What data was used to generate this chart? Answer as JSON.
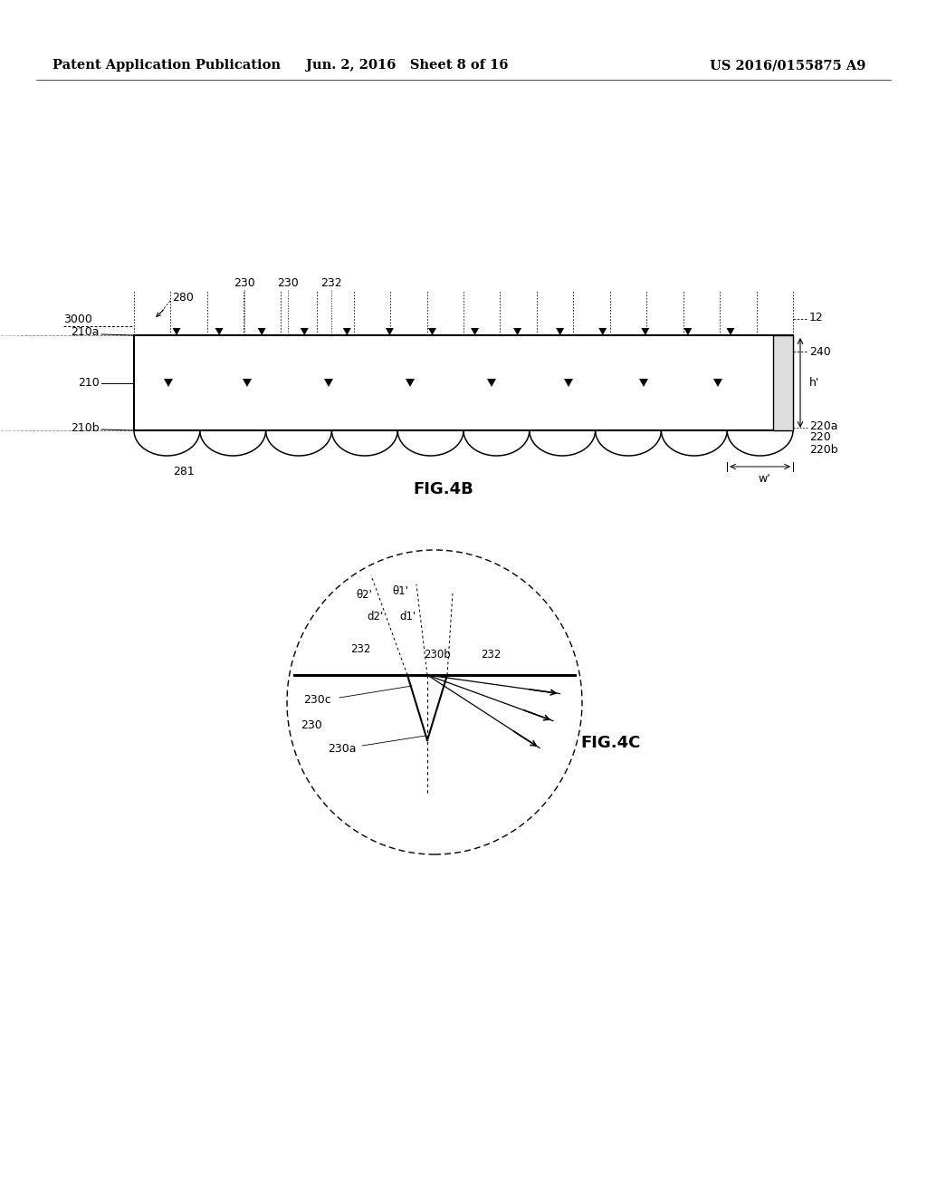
{
  "header_left": "Patent Application Publication",
  "header_mid": "Jun. 2, 2016   Sheet 8 of 16",
  "header_right": "US 2016/0155875 A9",
  "fig4b_label": "FIG.4B",
  "fig4c_label": "FIG.4C",
  "bg_color": "#ffffff",
  "line_color": "#000000",
  "gray_color": "#888888",
  "light_gray": "#cccccc",
  "ray_color": "#777777",
  "lw_main": 1.5,
  "lw_thin": 0.8,
  "fs_header": 10.5,
  "fs_label": 9,
  "fs_caption": 13
}
